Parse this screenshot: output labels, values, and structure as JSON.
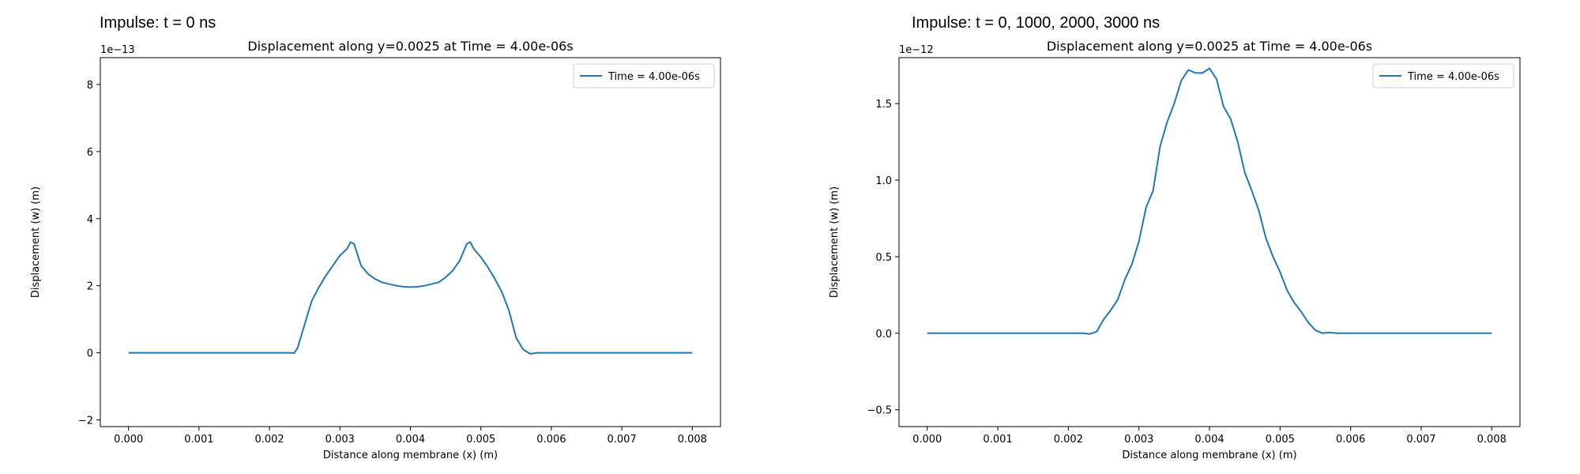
{
  "panels": [
    {
      "heading": "Impulse: t = 0 ns"
    },
    {
      "heading": "Impulse: t = 0, 1000, 2000, 3000 ns"
    }
  ],
  "chart_data": [
    {
      "type": "line",
      "title": "Displacement along y=0.0025 at Time = 4.00e-06s",
      "xlabel": "Distance along membrane (x) (m)",
      "ylabel": "Displacement (w) (m)",
      "y_offset_text": "1e−13",
      "xlim": [
        -0.0004,
        0.0084
      ],
      "ylim": [
        -2.2e-13,
        8.8e-13
      ],
      "xticks": [
        0,
        0.001,
        0.002,
        0.003,
        0.004,
        0.005,
        0.006,
        0.007,
        0.008
      ],
      "xtick_labels": [
        "0.000",
        "0.001",
        "0.002",
        "0.003",
        "0.004",
        "0.005",
        "0.006",
        "0.007",
        "0.008"
      ],
      "yticks": [
        -2e-13,
        0,
        2e-13,
        4e-13,
        6e-13,
        8e-13
      ],
      "ytick_labels": [
        "−2",
        "0",
        "2",
        "4",
        "6",
        "8"
      ],
      "grid": false,
      "legend_position": "top-right",
      "color": "#1f77b4",
      "series": [
        {
          "name": "Time = 4.00e-06s",
          "x": [
            0,
            0.0005,
            0.001,
            0.0015,
            0.002,
            0.0023,
            0.00235,
            0.0024,
            0.0025,
            0.0026,
            0.0027,
            0.0028,
            0.0029,
            0.003,
            0.0031,
            0.00315,
            0.0032,
            0.0033,
            0.0034,
            0.0035,
            0.0036,
            0.0037,
            0.0038,
            0.0039,
            0.004,
            0.0041,
            0.0042,
            0.0043,
            0.0044,
            0.0045,
            0.0046,
            0.0047,
            0.0048,
            0.00485,
            0.0049,
            0.005,
            0.0051,
            0.0052,
            0.0053,
            0.0054,
            0.0055,
            0.0056,
            0.0057,
            0.0058,
            0.006,
            0.007,
            0.008
          ],
          "y": [
            0,
            0,
            0,
            0,
            0,
            0.0,
            -1e-15,
            1.5e-14,
            8.5e-14,
            1.55e-13,
            1.95e-13,
            2.3e-13,
            2.6e-13,
            2.9e-13,
            3.1e-13,
            3.3e-13,
            3.25e-13,
            2.6e-13,
            2.35e-13,
            2.2e-13,
            2.1e-13,
            2.05e-13,
            2e-13,
            1.97e-13,
            1.96e-13,
            1.97e-13,
            2e-13,
            2.05e-13,
            2.1e-13,
            2.25e-13,
            2.45e-13,
            2.75e-13,
            3.25e-13,
            3.3e-13,
            3.1e-13,
            2.85e-13,
            2.55e-13,
            2.2e-13,
            1.8e-13,
            1.25e-13,
            4.5e-14,
            1e-14,
            -3e-15,
            0,
            0,
            0,
            0
          ]
        }
      ]
    },
    {
      "type": "line",
      "title": "Displacement along y=0.0025 at Time = 4.00e-06s",
      "xlabel": "Distance along membrane (x) (m)",
      "ylabel": "Displacement (w) (m)",
      "y_offset_text": "1e−12",
      "xlim": [
        -0.0004,
        0.0084
      ],
      "ylim": [
        -6.1e-13,
        1.8e-12
      ],
      "xticks": [
        0,
        0.001,
        0.002,
        0.003,
        0.004,
        0.005,
        0.006,
        0.007,
        0.008
      ],
      "xtick_labels": [
        "0.000",
        "0.001",
        "0.002",
        "0.003",
        "0.004",
        "0.005",
        "0.006",
        "0.007",
        "0.008"
      ],
      "yticks": [
        -5e-13,
        0,
        5e-13,
        1e-12,
        1.5e-12
      ],
      "ytick_labels": [
        "−0.5",
        "0.0",
        "0.5",
        "1.0",
        "1.5"
      ],
      "grid": false,
      "legend_position": "top-right",
      "color": "#1f77b4",
      "series": [
        {
          "name": "Time = 4.00e-06s",
          "x": [
            0,
            0.0005,
            0.001,
            0.0015,
            0.002,
            0.0022,
            0.0023,
            0.0024,
            0.0025,
            0.0026,
            0.0027,
            0.0028,
            0.0029,
            0.003,
            0.0031,
            0.0032,
            0.0033,
            0.0034,
            0.0035,
            0.0036,
            0.0037,
            0.0038,
            0.0039,
            0.004,
            0.0041,
            0.0042,
            0.0043,
            0.0044,
            0.0045,
            0.0046,
            0.0047,
            0.0048,
            0.0049,
            0.005,
            0.0051,
            0.0052,
            0.0053,
            0.0054,
            0.0055,
            0.0056,
            0.0057,
            0.0058,
            0.006,
            0.007,
            0.008
          ],
          "y": [
            0,
            0,
            0,
            0,
            0,
            0.0,
            -5e-15,
            1e-14,
            9e-14,
            1.5e-13,
            2.2e-13,
            3.5e-13,
            4.5e-13,
            6e-13,
            8.2e-13,
            9.3e-13,
            1.22e-12,
            1.38e-12,
            1.5e-12,
            1.65e-12,
            1.72e-12,
            1.7e-12,
            1.7e-12,
            1.73e-12,
            1.66e-12,
            1.48e-12,
            1.4e-12,
            1.25e-12,
            1.05e-12,
            9.3e-13,
            8e-13,
            6.2e-13,
            5e-13,
            4e-13,
            2.8e-13,
            2e-13,
            1.4e-13,
            7e-14,
            2e-14,
            0.0,
            5e-15,
            0,
            0,
            0,
            0
          ]
        }
      ]
    }
  ]
}
